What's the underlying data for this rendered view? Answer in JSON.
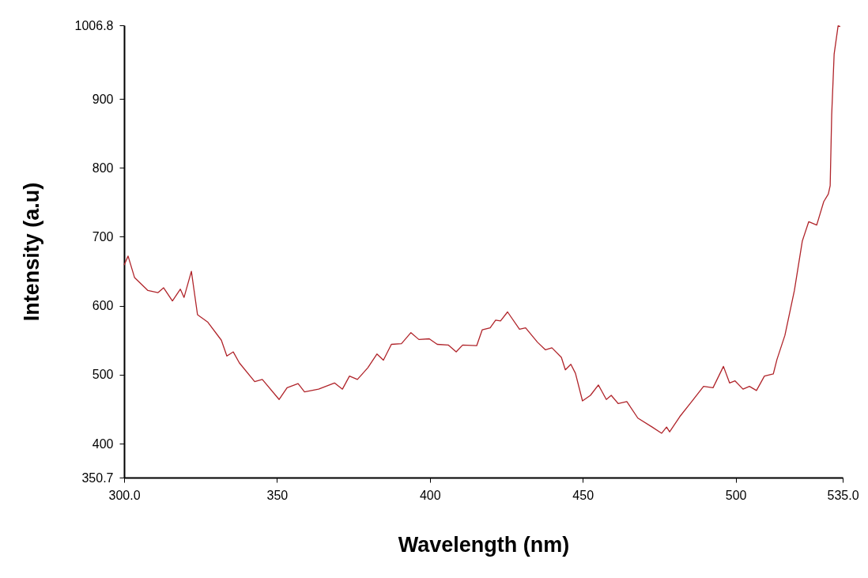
{
  "chart_data": {
    "type": "line",
    "xlabel": "Wavelength (nm)",
    "ylabel": "Intensity (a.u)",
    "x": [
      300,
      301.3,
      303.4,
      307.8,
      311.1,
      312.9,
      315.8,
      318.4,
      319.6,
      322,
      324,
      327.4,
      331.8,
      333.6,
      335.7,
      337.7,
      342.7,
      345.2,
      350.7,
      353.3,
      356.9,
      359,
      363.6,
      368.8,
      371.4,
      373.7,
      376.3,
      379.7,
      382.7,
      384.8,
      387.4,
      390.7,
      393.8,
      396.4,
      399.8,
      402.4,
      406,
      408.6,
      410.7,
      415.3,
      417.1,
      419.7,
      421.5,
      423.1,
      425.4,
      429.3,
      431.3,
      435.2,
      437.8,
      439.9,
      443,
      444.3,
      446.1,
      447.6,
      449.9,
      452.5,
      455.1,
      457.7,
      459.3,
      461.6,
      464.4,
      468,
      472.7,
      475.8,
      477.4,
      478.4,
      481.7,
      485.1,
      489.5,
      492.6,
      496,
      498,
      499.8,
      502.4,
      504.5,
      506.8,
      509.4,
      512.3,
      513.5,
      516.1,
      519.2,
      521.8,
      523.9,
      526.5,
      528.8,
      530.3,
      530.9,
      531.4,
      532.2,
      533.5,
      534.2
    ],
    "series": [
      {
        "color": "#b0242a",
        "values": [
          659,
          672,
          641,
          622,
          619,
          626,
          607,
          624,
          612,
          650,
          587,
          576,
          550,
          527,
          533,
          517,
          490,
          493,
          464,
          481,
          487,
          475,
          479,
          488,
          479,
          498,
          493,
          510,
          530,
          521,
          544,
          545,
          561,
          551,
          552,
          544,
          543,
          533,
          543,
          542,
          565,
          568,
          579,
          578,
          591,
          566,
          568,
          547,
          536,
          539,
          525,
          507,
          515,
          502,
          462,
          470,
          485,
          464,
          470,
          458,
          461,
          437,
          424,
          415,
          424,
          417,
          439,
          458,
          483,
          481,
          512,
          488,
          491,
          479,
          483,
          477,
          498,
          501,
          522,
          557,
          622,
          694,
          722,
          717,
          751,
          762,
          774,
          877,
          965,
          1006,
          1005
        ]
      }
    ],
    "xlim": [
      300,
      535
    ],
    "xticks": [
      {
        "value": 300,
        "label": "300.0"
      },
      350,
      400,
      450,
      500,
      {
        "value": 535,
        "label": "535.0"
      }
    ],
    "ylim": [
      350.7,
      1006.8
    ],
    "yticks": [
      350.7,
      400,
      500,
      600,
      700,
      800,
      900,
      1006.8
    ],
    "grid": false,
    "marker": "none",
    "line_style": "solid"
  }
}
